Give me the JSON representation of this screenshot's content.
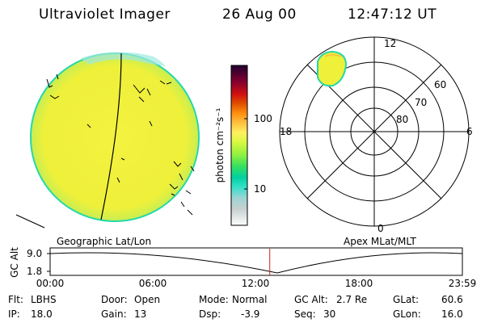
{
  "header": {
    "instrument": "Ultraviolet Imager",
    "date": "26 Aug 00",
    "time": "12:47:12 UT"
  },
  "colorbar": {
    "label": "photon cm⁻²s⁻¹",
    "tick_100": "100",
    "tick_10": "10",
    "colors": [
      "#ffffff",
      "#c8d0d0",
      "#9fd3d3",
      "#33e0c8",
      "#00d0a0",
      "#38e060",
      "#90f040",
      "#d8f840",
      "#fff060",
      "#ffc040",
      "#ff9010",
      "#e05000",
      "#d01010",
      "#800030",
      "#200030"
    ]
  },
  "globe": {
    "label": "Geographic Lat/Lon",
    "fill": "#f2f23a",
    "edge": "#25d8a8"
  },
  "polar": {
    "label": "Apex MLat/MLT",
    "mlt_12": "12",
    "mlt_18": "18",
    "mlt_6": "6",
    "mlt_0": "0",
    "lat_60": "60",
    "lat_70": "70",
    "lat_80": "80"
  },
  "timeline": {
    "axis_label": "GC Alt",
    "y_top": "9.0",
    "y_bottom": "1.8",
    "ticks": [
      "00:00",
      "06:00",
      "12:00",
      "18:00",
      "23:59"
    ],
    "current_time_hours": 12.787,
    "marker_color": "#cc2020"
  },
  "footer": {
    "flt_label": "Flt:",
    "flt_value": "LBHS",
    "door_label": "Door:",
    "door_value": "Open",
    "mode_label": "Mode:",
    "mode_value": "Normal",
    "gcalt_label": "GC Alt:",
    "gcalt_value": "2.7 Re",
    "glat_label": "GLat:",
    "glat_value": "60.6",
    "ip_label": "IP:",
    "ip_value": "18.0",
    "gain_label": "Gain:",
    "gain_value": "13",
    "dsp_label": "Dsp:",
    "dsp_value": "-3.9",
    "seq_label": "Seq:",
    "seq_value": "30",
    "glon_label": "GLon:",
    "glon_value": "16.0"
  }
}
